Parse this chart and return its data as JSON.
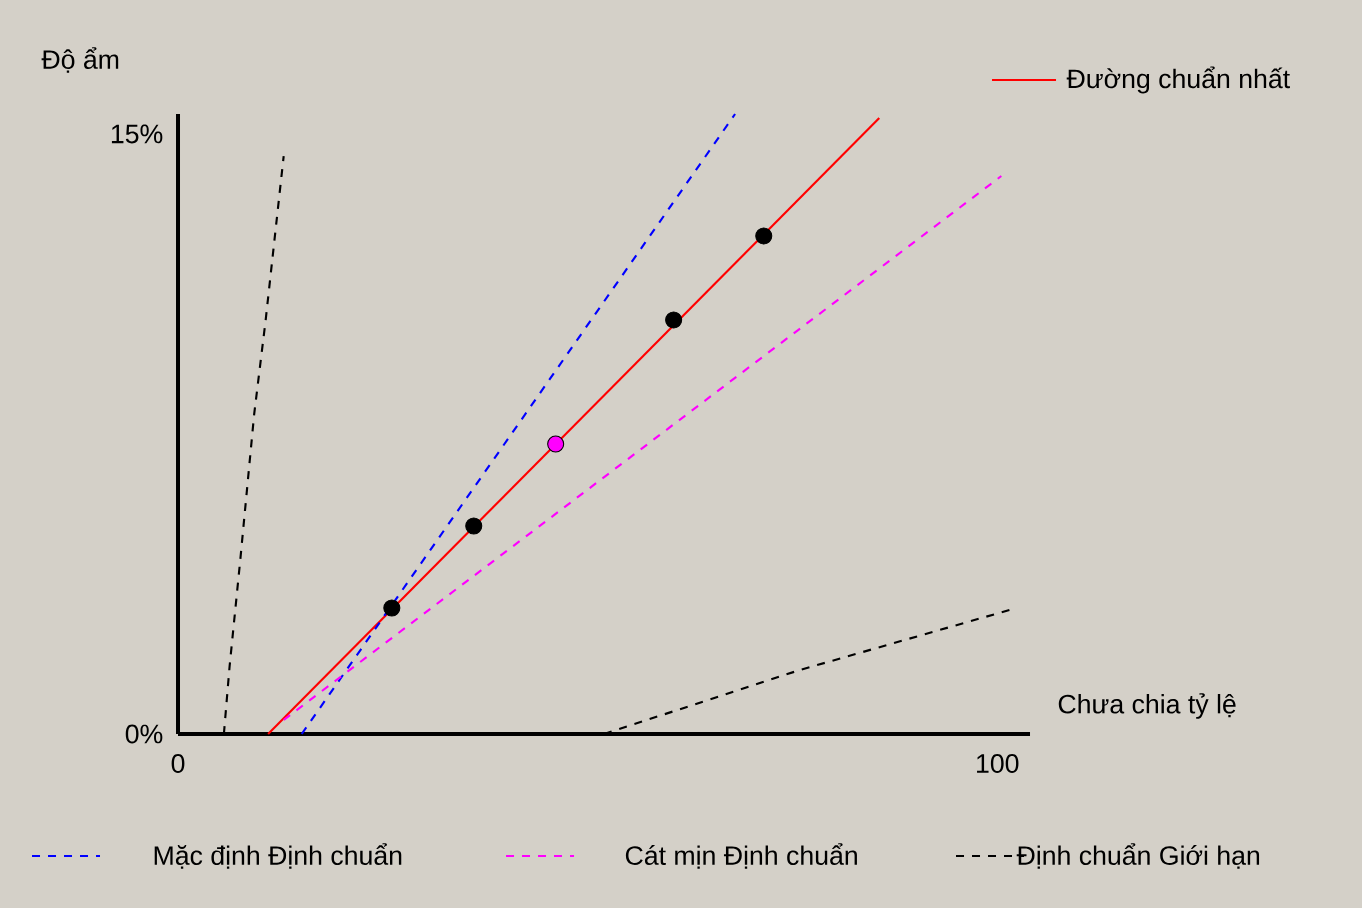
{
  "chart_data": {
    "type": "line",
    "xlabel": "Chưa chia tỷ lệ",
    "ylabel": "Độ ẩm",
    "xlim": [
      0,
      104
    ],
    "ylim": [
      0,
      15.5
    ],
    "xticks": [
      0,
      100
    ],
    "yticks": [
      {
        "value": 0,
        "label": "0%"
      },
      {
        "value": 15,
        "label": "15%"
      }
    ],
    "legend": "bottom",
    "grid": false,
    "series": [
      {
        "name": "Đường chuẩn nhất",
        "color": "#ff0000",
        "line_style": "solid",
        "x": [
          11,
          85.6
        ],
        "values": [
          0,
          15.4
        ]
      },
      {
        "name": "Mặc định Định chuẩn",
        "color": "#0000ff",
        "line_style": "dashed",
        "x": [
          15.1,
          68
        ],
        "values": [
          0,
          15.5
        ]
      },
      {
        "name": "Cát mịn Định chuẩn",
        "color": "#ff00ff",
        "line_style": "dashed",
        "x": [
          12.9,
          100.5
        ],
        "values": [
          0.35,
          13.95
        ]
      },
      {
        "name": "Định chuẩn Giới hạn",
        "color": "#000000",
        "line_style": "dashed",
        "x": [
          5.6,
          6.3,
          7.6,
          9.3,
          10.7,
          12.9
        ],
        "values": [
          0,
          1.7,
          4.35,
          8.0,
          10.35,
          14.45
        ]
      },
      {
        "color": "#000000",
        "line_style": "dashed",
        "x": [
          52,
          75.9,
          101.5
        ],
        "values": [
          0,
          1.6,
          3.1
        ]
      },
      {
        "type": "scatter",
        "marker": "circle",
        "colors": [
          "#000000",
          "#000000",
          "#ff00ff",
          "#000000",
          "#000000"
        ],
        "x": [
          26.1,
          36.1,
          46.1,
          60.5,
          71.5
        ],
        "values": [
          3.15,
          5.2,
          7.25,
          10.35,
          12.45
        ]
      }
    ]
  }
}
